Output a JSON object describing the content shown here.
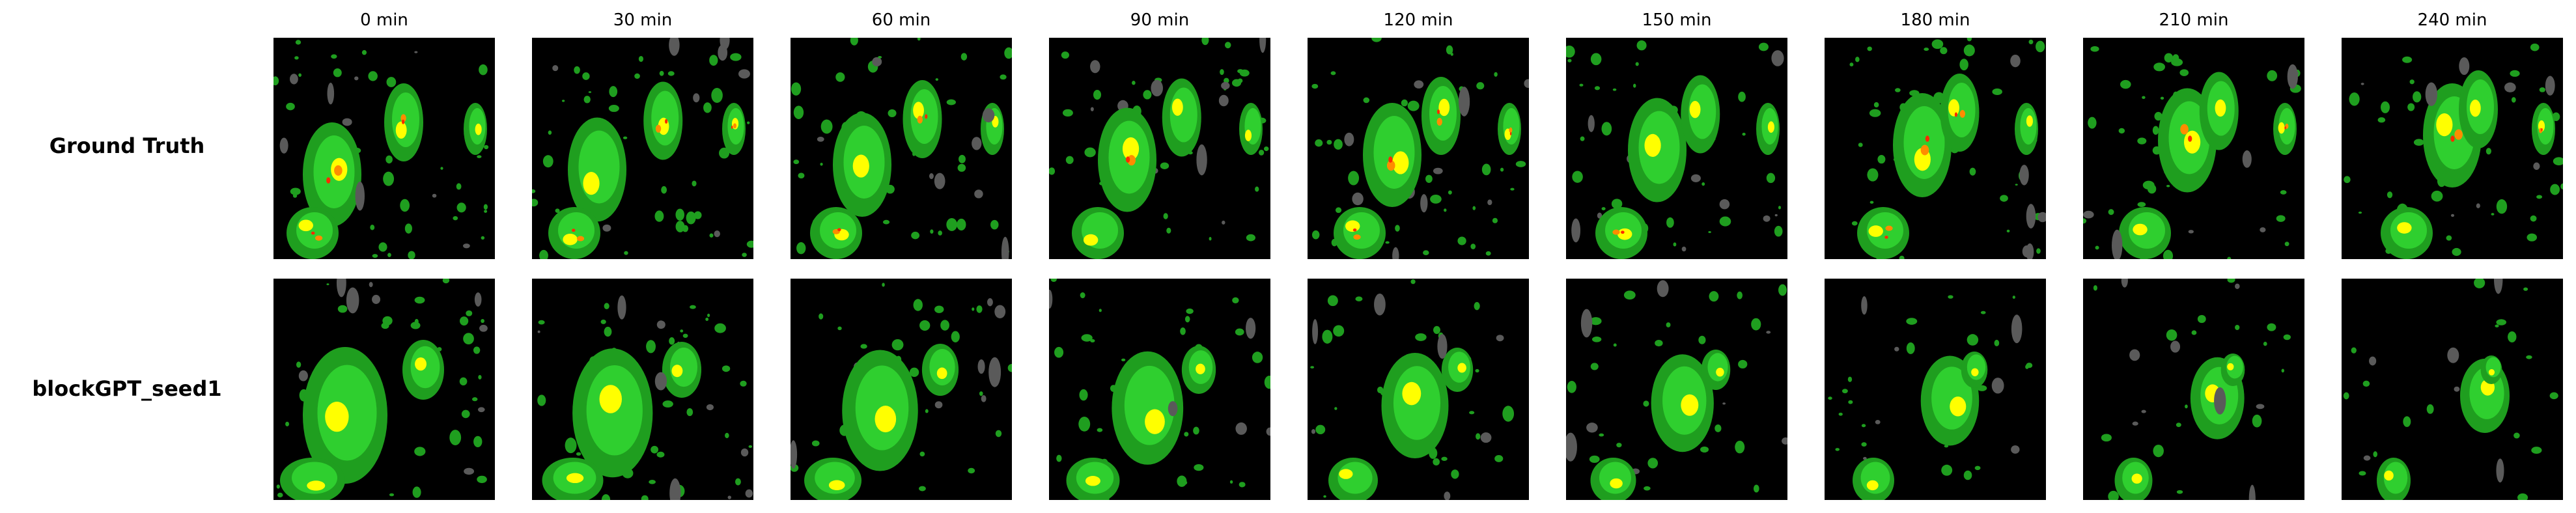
{
  "figure": {
    "columns": [
      "0 min",
      "30 min",
      "60 min",
      "90 min",
      "120 min",
      "150 min",
      "180 min",
      "210 min",
      "240 min"
    ],
    "rows": [
      {
        "label": "Ground Truth"
      },
      {
        "label": "blockGPT_seed1"
      }
    ],
    "colors": {
      "background": "#000000",
      "clutter": "#5a5a5a",
      "light_rain": "#1f9e1f",
      "moderate_rain": "#2fcf2f",
      "heavy_rain": "#ffff00",
      "intense_rain": "#ff8c00",
      "extreme_rain": "#ff2a00"
    }
  }
}
